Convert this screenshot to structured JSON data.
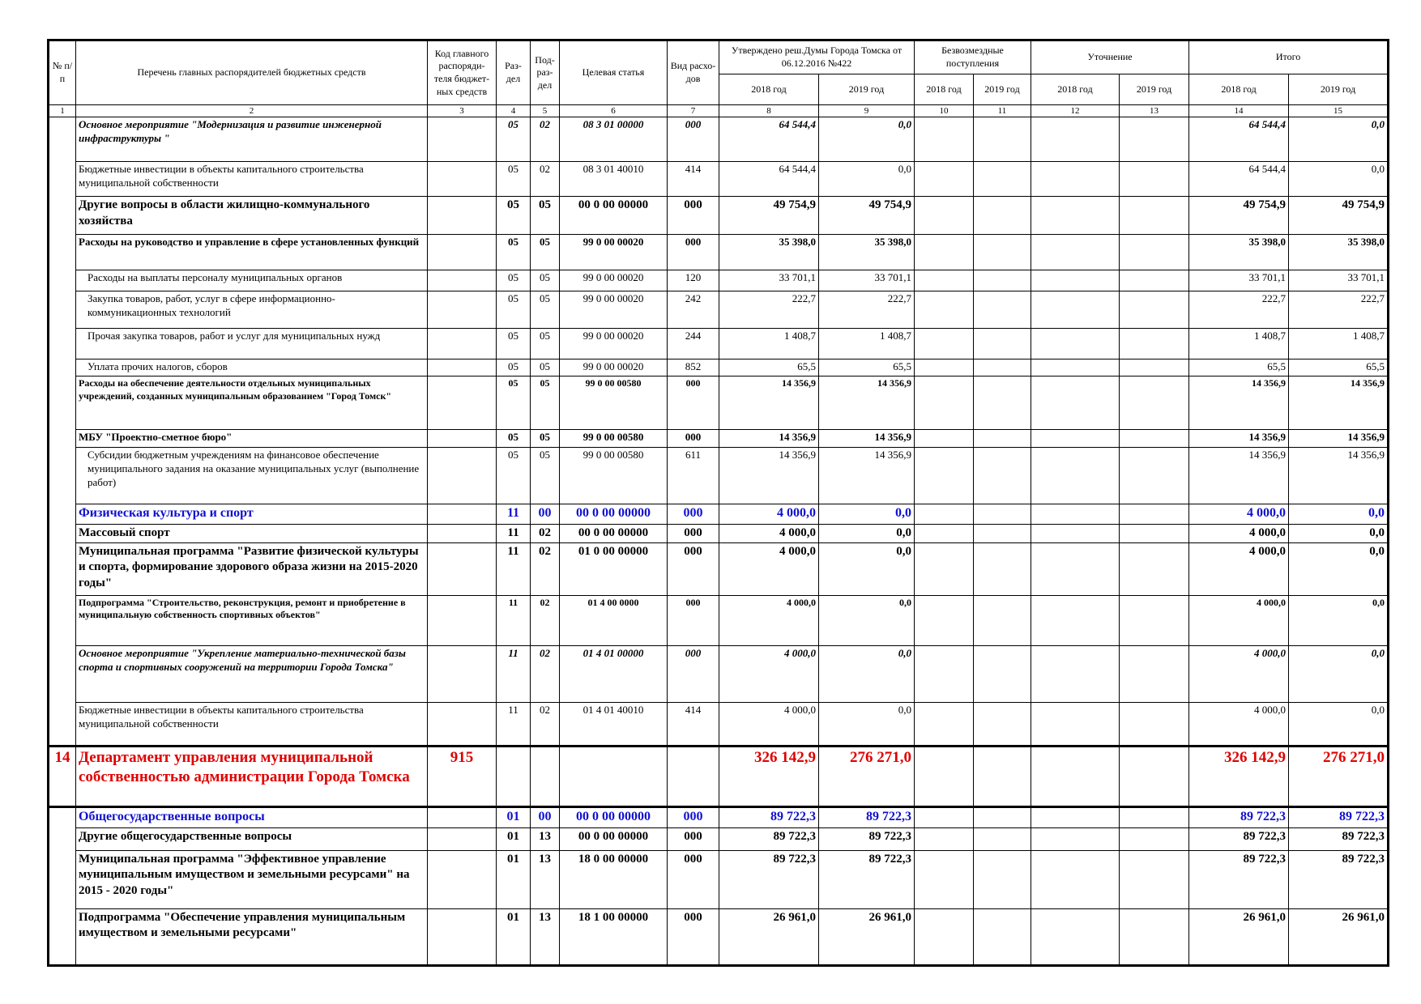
{
  "header": {
    "num": "№ п/п",
    "name": "Перечень главных распорядителей бюджетных средств",
    "code": "Код главного распоряди-теля бюджет-ных средств",
    "razdel": "Раз-дел",
    "podrazdel": "Под-раз-дел",
    "target": "Целевая статья",
    "kind": "Вид расхо-дов",
    "approved": "Утверждено реш.Думы Города Томска от 06.12.2016 №422",
    "free": "Безвозмездные поступления",
    "refine": "Уточнение",
    "total": "Итого",
    "years": [
      "2018 год",
      "2019 год"
    ]
  },
  "column_numbers": [
    1,
    2,
    3,
    4,
    5,
    6,
    7,
    8,
    9,
    10,
    11,
    12,
    13,
    14,
    15
  ],
  "rows": [
    {
      "name": "Основное мероприятие \"Модернизация и развитие инженерной инфраструктуры \"",
      "razdel": "05",
      "podrazdel": "02",
      "target": "08 3 01 00000",
      "kind": "000",
      "approved": [
        "64 544,4",
        "0,0"
      ],
      "total": [
        "64 544,4",
        "0,0"
      ]
    },
    {
      "name": "Бюджетные инвестиции в объекты капитального строительства муниципальной собственности",
      "razdel": "05",
      "podrazdel": "02",
      "target": "08 3 01 40010",
      "kind": "414",
      "approved": [
        "64 544,4",
        "0,0"
      ],
      "total": [
        "64 544,4",
        "0,0"
      ]
    },
    {
      "name": "Другие вопросы в области жилищно-коммунального хозяйства",
      "razdel": "05",
      "podrazdel": "05",
      "target": "00 0 00 00000",
      "kind": "000",
      "approved": [
        "49 754,9",
        "49 754,9"
      ],
      "total": [
        "49 754,9",
        "49 754,9"
      ]
    },
    {
      "name": "Расходы на руководство и управление в сфере установленных функций",
      "razdel": "05",
      "podrazdel": "05",
      "target": "99 0 00 00020",
      "kind": "000",
      "approved": [
        "35 398,0",
        "35 398,0"
      ],
      "total": [
        "35 398,0",
        "35 398,0"
      ]
    },
    {
      "name": "Расходы на выплаты персоналу муниципальных органов",
      "razdel": "05",
      "podrazdel": "05",
      "target": "99 0 00 00020",
      "kind": "120",
      "approved": [
        "33 701,1",
        "33 701,1"
      ],
      "total": [
        "33 701,1",
        "33 701,1"
      ]
    },
    {
      "name": "Закупка товаров, работ, услуг в сфере информационно-коммуникационных технологий",
      "razdel": "05",
      "podrazdel": "05",
      "target": "99 0 00 00020",
      "kind": "242",
      "approved": [
        "222,7",
        "222,7"
      ],
      "total": [
        "222,7",
        "222,7"
      ]
    },
    {
      "name": "Прочая закупка товаров, работ и услуг для муниципальных нужд",
      "razdel": "05",
      "podrazdel": "05",
      "target": "99 0 00 00020",
      "kind": "244",
      "approved": [
        "1 408,7",
        "1 408,7"
      ],
      "total": [
        "1 408,7",
        "1 408,7"
      ]
    },
    {
      "name": "Уплата прочих налогов, сборов",
      "razdel": "05",
      "podrazdel": "05",
      "target": "99 0 00 00020",
      "kind": "852",
      "approved": [
        "65,5",
        "65,5"
      ],
      "total": [
        "65,5",
        "65,5"
      ]
    },
    {
      "name": "Расходы на обеспечение деятельности отдельных муниципальных учреждений, созданных муниципальным образованием \"Город Томск\"",
      "razdel": "05",
      "podrazdel": "05",
      "target": "99 0 00 00580",
      "kind": "000",
      "approved": [
        "14 356,9",
        "14 356,9"
      ],
      "total": [
        "14 356,9",
        "14 356,9"
      ]
    },
    {
      "name": "МБУ \"Проектно-сметное бюро\"",
      "razdel": "05",
      "podrazdel": "05",
      "target": "99 0 00 00580",
      "kind": "000",
      "approved": [
        "14 356,9",
        "14 356,9"
      ],
      "total": [
        "14 356,9",
        "14 356,9"
      ]
    },
    {
      "name": "Субсидии бюджетным учреждениям на финансовое обеспечение муниципального задания на оказание муниципальных услуг (выполнение работ)",
      "razdel": "05",
      "podrazdel": "05",
      "target": "99 0 00 00580",
      "kind": "611",
      "approved": [
        "14 356,9",
        "14 356,9"
      ],
      "total": [
        "14 356,9",
        "14 356,9"
      ]
    },
    {
      "name": "Физическая культура и спорт",
      "razdel": "11",
      "podrazdel": "00",
      "target": "00 0 00 00000",
      "kind": "000",
      "approved": [
        "4 000,0",
        "0,0"
      ],
      "total": [
        "4 000,0",
        "0,0"
      ]
    },
    {
      "name": "Массовый спорт",
      "razdel": "11",
      "podrazdel": "02",
      "target": "00 0 00 00000",
      "kind": "000",
      "approved": [
        "4 000,0",
        "0,0"
      ],
      "total": [
        "4 000,0",
        "0,0"
      ]
    },
    {
      "name": "Муниципальная программа \"Развитие физической культуры и спорта, формирование здорового образа жизни на 2015-2020 годы\"",
      "razdel": "11",
      "podrazdel": "02",
      "target": "01 0 00 00000",
      "kind": "000",
      "approved": [
        "4 000,0",
        "0,0"
      ],
      "total": [
        "4 000,0",
        "0,0"
      ]
    },
    {
      "name": "Подпрограмма \"Строительство, реконструкция, ремонт и приобретение в муниципальную собственность спортивных объектов\"",
      "razdel": "11",
      "podrazdel": "02",
      "target": "01 4 00 0000",
      "kind": "000",
      "approved": [
        "4 000,0",
        "0,0"
      ],
      "total": [
        "4 000,0",
        "0,0"
      ]
    },
    {
      "name": "Основное мероприятие \"Укрепление материально-технической базы спорта и спортивных сооружений на территории Города Томска\"",
      "razdel": "11",
      "podrazdel": "02",
      "target": "01 4 01 00000",
      "kind": "000",
      "approved": [
        "4 000,0",
        "0,0"
      ],
      "total": [
        "4 000,0",
        "0,0"
      ]
    },
    {
      "name": "Бюджетные инвестиции в объекты капитального строительства муниципальной собственности",
      "razdel": "11",
      "podrazdel": "02",
      "target": "01 4 01 40010",
      "kind": "414",
      "approved": [
        "4 000,0",
        "0,0"
      ],
      "total": [
        "4 000,0",
        "0,0"
      ]
    },
    {
      "num": "14",
      "name": "Департамент управления муниципальной собственностью администрации Города Томска",
      "code": "915",
      "approved": [
        "326 142,9",
        "276 271,0"
      ],
      "total": [
        "326 142,9",
        "276 271,0"
      ]
    },
    {
      "name": "Общегосударственные вопросы",
      "razdel": "01",
      "podrazdel": "00",
      "target": "00 0 00 00000",
      "kind": "000",
      "approved": [
        "89 722,3",
        "89 722,3"
      ],
      "total": [
        "89 722,3",
        "89 722,3"
      ]
    },
    {
      "name": "Другие общегосударственные вопросы",
      "razdel": "01",
      "podrazdel": "13",
      "target": "00 0 00 00000",
      "kind": "000",
      "approved": [
        "89 722,3",
        "89 722,3"
      ],
      "total": [
        "89 722,3",
        "89 722,3"
      ]
    },
    {
      "name": "Муниципальная программа \"Эффективное управление муниципальным имуществом и земельными ресурсами\" на 2015 - 2020 годы\"",
      "razdel": "01",
      "podrazdel": "13",
      "target": "18 0 00 00000",
      "kind": "000",
      "approved": [
        "89 722,3",
        "89 722,3"
      ],
      "total": [
        "89 722,3",
        "89 722,3"
      ]
    },
    {
      "name": "Подпрограмма \"Обеспечение управления муниципальным имуществом и земельными ресурсами\"",
      "razdel": "01",
      "podrazdel": "13",
      "target": "18 1 00 00000",
      "kind": "000",
      "approved": [
        "26 961,0",
        "26 961,0"
      ],
      "total": [
        "26 961,0",
        "26 961,0"
      ]
    }
  ]
}
